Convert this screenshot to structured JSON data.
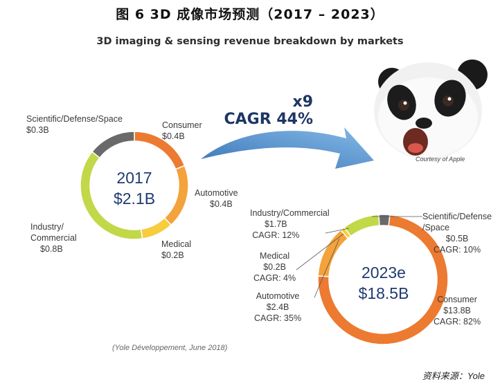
{
  "figure_title": "图 6   3D 成像市场预测（2017 – 2023）",
  "chart_data": [
    {
      "type": "pie",
      "title": "3D imaging & sensing revenue breakdown by markets",
      "year_label": "2017",
      "total_label": "$2.1B",
      "segments": [
        {
          "name": "Consumer",
          "value": 0.4,
          "value_label": "$0.4B",
          "color": "#ec7a31"
        },
        {
          "name": "Automotive",
          "value": 0.4,
          "value_label": "$0.4B",
          "color": "#f4a23b"
        },
        {
          "name": "Medical",
          "value": 0.2,
          "value_label": "$0.2B",
          "color": "#f7cc3d"
        },
        {
          "name": "Industry/\nCommercial",
          "value": 0.8,
          "value_label": "$0.8B",
          "color": "#c2d848"
        },
        {
          "name": "Scientific/Defense/Space",
          "value": 0.3,
          "value_label": "$0.3B",
          "color": "#6a6a6a"
        }
      ]
    },
    {
      "type": "pie",
      "title": "3D imaging & sensing revenue breakdown by markets",
      "year_label": "2023e",
      "total_label": "$18.5B",
      "segments": [
        {
          "name": "Consumer",
          "value": 13.8,
          "value_label": "$13.8B",
          "cagr": "CAGR: 82%",
          "color": "#ec7a31"
        },
        {
          "name": "Automotive",
          "value": 2.4,
          "value_label": "$2.4B",
          "cagr": "CAGR: 35%",
          "color": "#f4a23b"
        },
        {
          "name": "Medical",
          "value": 0.2,
          "value_label": "$0.2B",
          "cagr": "CAGR: 4%",
          "color": "#f7cc3d"
        },
        {
          "name": "Industry/Commercial",
          "value": 1.7,
          "value_label": "$1.7B",
          "cagr": "CAGR: 12%",
          "color": "#c2d848"
        },
        {
          "name": "Scientific/Defense\n/Space",
          "value": 0.5,
          "value_label": "$0.5B",
          "cagr": "CAGR: 10%",
          "color": "#6a6a6a"
        }
      ]
    }
  ],
  "growth": {
    "multiplier": "x9",
    "cagr": "CAGR 44%",
    "arrow_color": "#3f86c9"
  },
  "courtesy": "Courtesy of Apple",
  "source_note": "(Yole Développement, June 2018)",
  "data_source": "资料来源：Yole",
  "labels_2017": {
    "consumer": {
      "name": "Consumer",
      "value": "$0.4B"
    },
    "automotive": {
      "name": "Automotive",
      "value": "$0.4B"
    },
    "medical": {
      "name": "Medical",
      "value": "$0.2B"
    },
    "industry": {
      "name1": "Industry/",
      "name2": "Commercial",
      "value": "$0.8B"
    },
    "scientific": {
      "name": "Scientific/Defense/Space",
      "value": "$0.3B"
    }
  },
  "labels_2023": {
    "consumer": {
      "name": "Consumer",
      "value": "$13.8B",
      "cagr": "CAGR: 82%"
    },
    "automotive": {
      "name": "Automotive",
      "value": "$2.4B",
      "cagr": "CAGR: 35%"
    },
    "medical": {
      "name": "Medical",
      "value": "$0.2B",
      "cagr": "CAGR: 4%"
    },
    "industry": {
      "name": "Industry/Commercial",
      "value": "$1.7B",
      "cagr": "CAGR: 12%"
    },
    "scientific": {
      "name1": "Scientific/Defense",
      "name2": "/Space",
      "value": "$0.5B",
      "cagr": "CAGR: 10%"
    }
  }
}
